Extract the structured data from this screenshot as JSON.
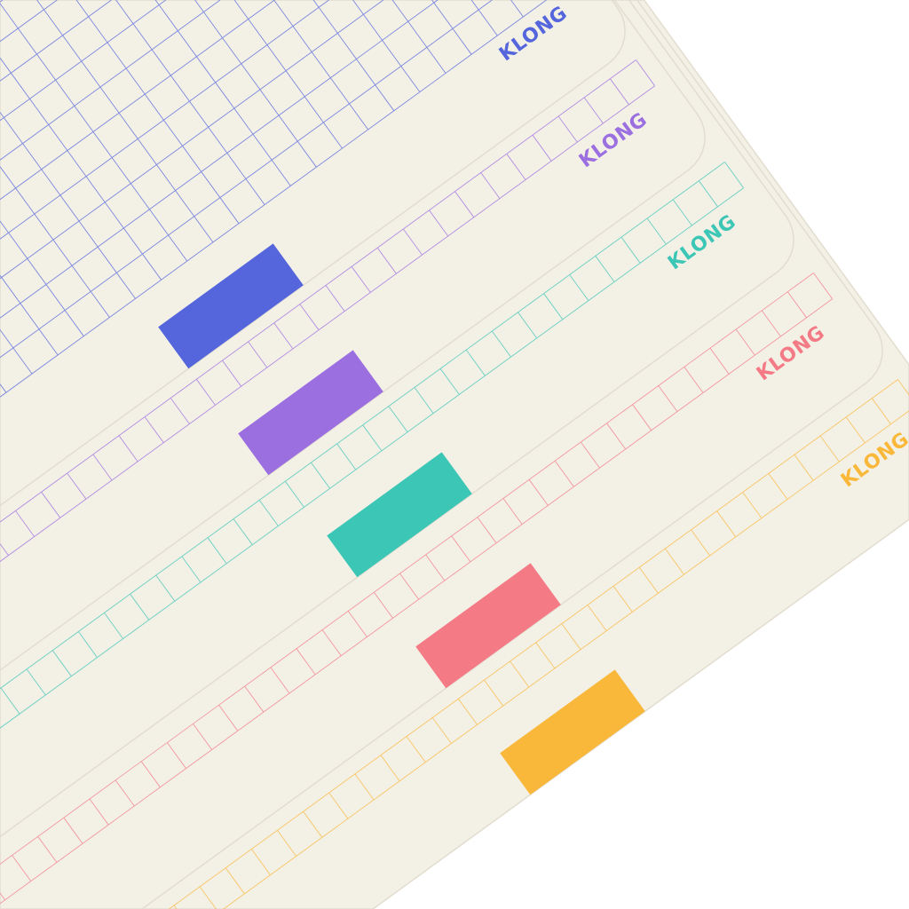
{
  "scene": {
    "background": "#ffffff",
    "paper_color": "#f3f0e6",
    "sheets": [
      {
        "logo": "KLONG",
        "color": "#5566dd",
        "grid": "full"
      },
      {
        "logo": "KLONG",
        "color": "#9b6fe0",
        "grid": "row"
      },
      {
        "logo": "KLONG",
        "color": "#3cc6b6",
        "grid": "row"
      },
      {
        "logo": "KLONG",
        "color": "#f47a86",
        "grid": "row"
      },
      {
        "logo": "KLONG",
        "color": "#f9b83a",
        "grid": "row"
      }
    ]
  }
}
